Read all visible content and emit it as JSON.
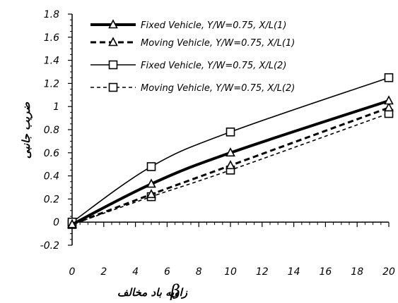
{
  "chart_data": {
    "type": "line",
    "title": "",
    "xlabel": "زاویه باد مخالف",
    "xlabel_symbol": "β",
    "ylabel": "ضریب جانبی",
    "xlim": [
      0,
      20
    ],
    "ylim": [
      -0.2,
      1.8
    ],
    "x_ticks": [
      "0",
      "2",
      "4",
      "6",
      "8",
      "10",
      "12",
      "14",
      "16",
      "18",
      "20"
    ],
    "y_ticks": [
      "-0.2",
      "0",
      "0.2",
      "0.4",
      "0.6",
      "0.8",
      "1",
      "1.2",
      "1.4",
      "1.6",
      "1.8"
    ],
    "grid": false,
    "legend_position": "top-center",
    "series": [
      {
        "name": "Fixed Vehicle, Y/W=0.75, X/L(1)",
        "x": [
          0,
          5,
          10,
          20
        ],
        "values": [
          -0.02,
          0.33,
          0.6,
          1.05
        ],
        "marker": "triangle",
        "line_style": "solid-thick",
        "color": "#000000"
      },
      {
        "name": "Moving Vehicle, Y/W=0.75, X/L(1)",
        "x": [
          0,
          5,
          10,
          20
        ],
        "values": [
          -0.02,
          0.24,
          0.49,
          0.99
        ],
        "marker": "triangle",
        "line_style": "dashed-thick",
        "color": "#000000"
      },
      {
        "name": "Fixed Vehicle, Y/W=0.75, X/L(2)",
        "x": [
          0,
          5,
          10,
          20
        ],
        "values": [
          0.0,
          0.48,
          0.78,
          1.25
        ],
        "marker": "square",
        "line_style": "solid-thin",
        "color": "#000000"
      },
      {
        "name": "Moving Vehicle, Y/W=0.75, X/L(2)",
        "x": [
          0,
          5,
          10,
          20
        ],
        "values": [
          -0.02,
          0.22,
          0.45,
          0.94
        ],
        "marker": "square",
        "line_style": "dashed-thin",
        "color": "#000000"
      }
    ]
  }
}
